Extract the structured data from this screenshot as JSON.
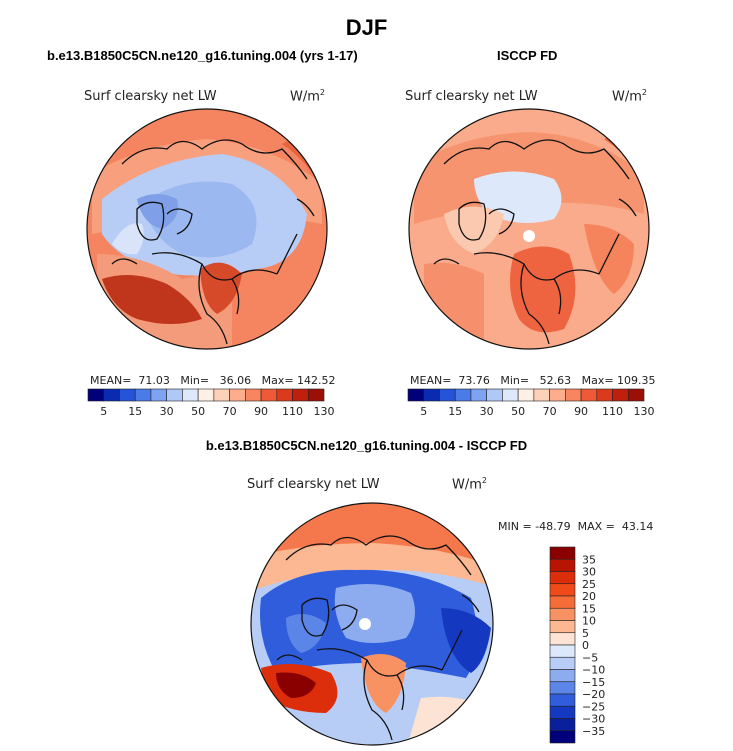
{
  "season": "DJF",
  "panels": [
    {
      "id": "model",
      "run_title": "b.e13.B1850C5CN.ne120_g16.tuning.004 (yrs 1-17)",
      "variable": "Surf clearsky net LW",
      "units": "W/m",
      "units_sup": "2",
      "stats_text": "MEAN=  71.03   Min=   36.06   Max= 142.52",
      "mean": 71.03,
      "min": 36.06,
      "max": 142.52
    },
    {
      "id": "obs",
      "run_title": "ISCCP FD",
      "variable": "Surf clearsky net LW",
      "units": "W/m",
      "units_sup": "2",
      "stats_text": "MEAN=  73.76   Min=   52.63   Max= 109.35",
      "mean": 73.76,
      "min": 52.63,
      "max": 109.35
    },
    {
      "id": "diff",
      "run_title": "b.e13.B1850C5CN.ne120_g16.tuning.004 - ISCCP FD",
      "variable": "Surf clearsky net LW",
      "units": "W/m",
      "units_sup": "2",
      "stats_text": "MIN = -48.79  MAX =  43.14",
      "min": -48.79,
      "max": 43.14
    }
  ],
  "colorbar_abs": {
    "labels": [
      "5",
      "15",
      "30",
      "50",
      "70",
      "90",
      "110",
      "130"
    ],
    "colors": [
      "#00007a",
      "#0a2bb0",
      "#2554d8",
      "#4a7be8",
      "#7ea3f0",
      "#b0c8f5",
      "#dde8fb",
      "#fff0e6",
      "#fdd0b8",
      "#fbad8c",
      "#f7855f",
      "#ee5a36",
      "#dc3a1c",
      "#bf200e",
      "#9c0f06"
    ]
  },
  "colorbar_diff": {
    "labels": [
      "35",
      "30",
      "25",
      "20",
      "15",
      "10",
      "5",
      "0",
      "−5",
      "−10",
      "−15",
      "−20",
      "−25",
      "−30",
      "−35"
    ],
    "colors": [
      "#8a0000",
      "#b81404",
      "#dc2e0a",
      "#f04a18",
      "#f66c36",
      "#f99262",
      "#fbb892",
      "#fde3d3",
      "#dce8fb",
      "#b8cdf6",
      "#8cacef",
      "#5b85e6",
      "#2f5ddc",
      "#1439c0",
      "#0a1f9a",
      "#00007a"
    ]
  }
}
